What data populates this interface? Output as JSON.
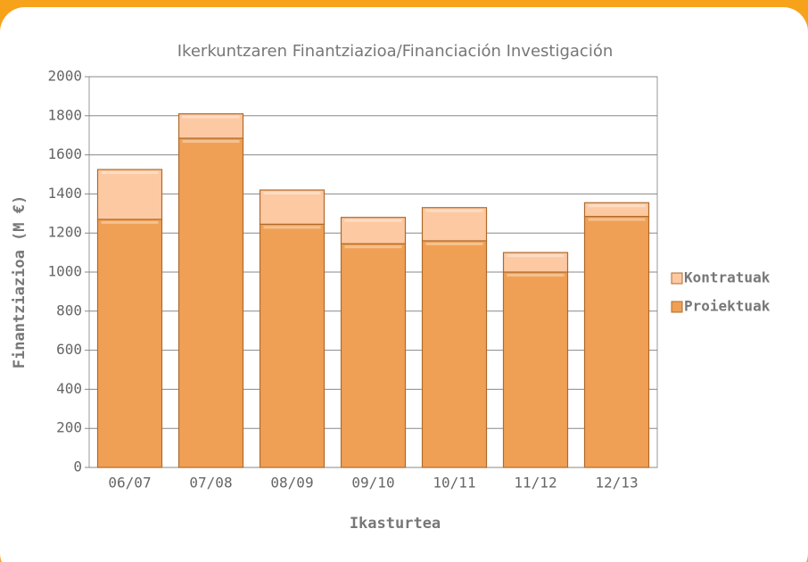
{
  "chart_data": {
    "type": "stacked_bar",
    "title": "Ikerkuntzaren Finantziazioa/Financiación Investigación",
    "x_label": "Ikasturtea",
    "y_label": "Finantziazioa (M €)",
    "categories": [
      "06/07",
      "07/08",
      "08/09",
      "09/10",
      "10/11",
      "11/12",
      "12/13"
    ],
    "series": [
      {
        "name": "Proiektuak",
        "color": "#f0a055",
        "values": [
          1270,
          1685,
          1245,
          1145,
          1160,
          1000,
          1285
        ]
      },
      {
        "name": "Kontratuak",
        "color": "#fdc9a2",
        "values": [
          255,
          125,
          175,
          135,
          170,
          100,
          70
        ]
      }
    ],
    "ylim": [
      0,
      2000
    ],
    "yticks": [
      0,
      200,
      400,
      600,
      800,
      1000,
      1200,
      1400,
      1600,
      1800,
      2000
    ],
    "grid": true,
    "legend": "right"
  }
}
